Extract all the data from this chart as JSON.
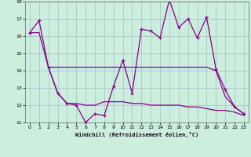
{
  "line1_x": [
    0,
    1,
    2,
    3,
    4,
    5,
    6,
    7,
    8,
    9,
    10,
    11,
    12,
    13,
    14,
    15,
    16,
    17,
    18,
    19,
    20,
    21,
    22,
    23
  ],
  "line1_y": [
    16.2,
    16.9,
    14.2,
    12.7,
    12.1,
    12.0,
    11.0,
    11.5,
    11.4,
    13.1,
    14.6,
    12.7,
    16.4,
    16.3,
    15.9,
    18.1,
    16.5,
    17.0,
    15.9,
    17.1,
    14.1,
    12.9,
    11.9,
    11.5
  ],
  "line2_x": [
    0,
    1,
    2,
    3,
    4,
    5,
    6,
    7,
    8,
    9,
    10,
    11,
    12,
    13,
    14,
    15,
    16,
    17,
    18,
    19,
    20,
    21,
    22,
    23
  ],
  "line2_y": [
    16.2,
    16.2,
    14.2,
    14.2,
    14.2,
    14.2,
    14.2,
    14.2,
    14.2,
    14.2,
    14.2,
    14.2,
    14.2,
    14.2,
    14.2,
    14.2,
    14.2,
    14.2,
    14.2,
    14.2,
    14.0,
    12.5,
    11.9,
    11.5
  ],
  "line3_x": [
    2,
    3,
    4,
    5,
    6,
    7,
    8,
    9,
    10,
    11,
    12,
    13,
    14,
    15,
    16,
    17,
    18,
    19,
    20,
    21,
    22,
    23
  ],
  "line3_y": [
    14.2,
    12.7,
    12.1,
    12.1,
    12.0,
    12.0,
    12.2,
    12.2,
    12.2,
    12.1,
    12.1,
    12.0,
    12.0,
    12.0,
    12.0,
    11.9,
    11.9,
    11.8,
    11.7,
    11.7,
    11.6,
    11.4
  ],
  "line_color": "#880088",
  "bg_color": "#cceedd",
  "grid_color": "#aabbcc",
  "xlabel": "Windchill (Refroidissement éolien,°C)",
  "xlim": [
    -0.5,
    23.5
  ],
  "ylim": [
    11,
    18
  ],
  "yticks": [
    11,
    12,
    13,
    14,
    15,
    16,
    17,
    18
  ],
  "xticks": [
    0,
    1,
    2,
    3,
    4,
    5,
    6,
    7,
    8,
    9,
    10,
    11,
    12,
    13,
    14,
    15,
    16,
    17,
    18,
    19,
    20,
    21,
    22,
    23
  ]
}
